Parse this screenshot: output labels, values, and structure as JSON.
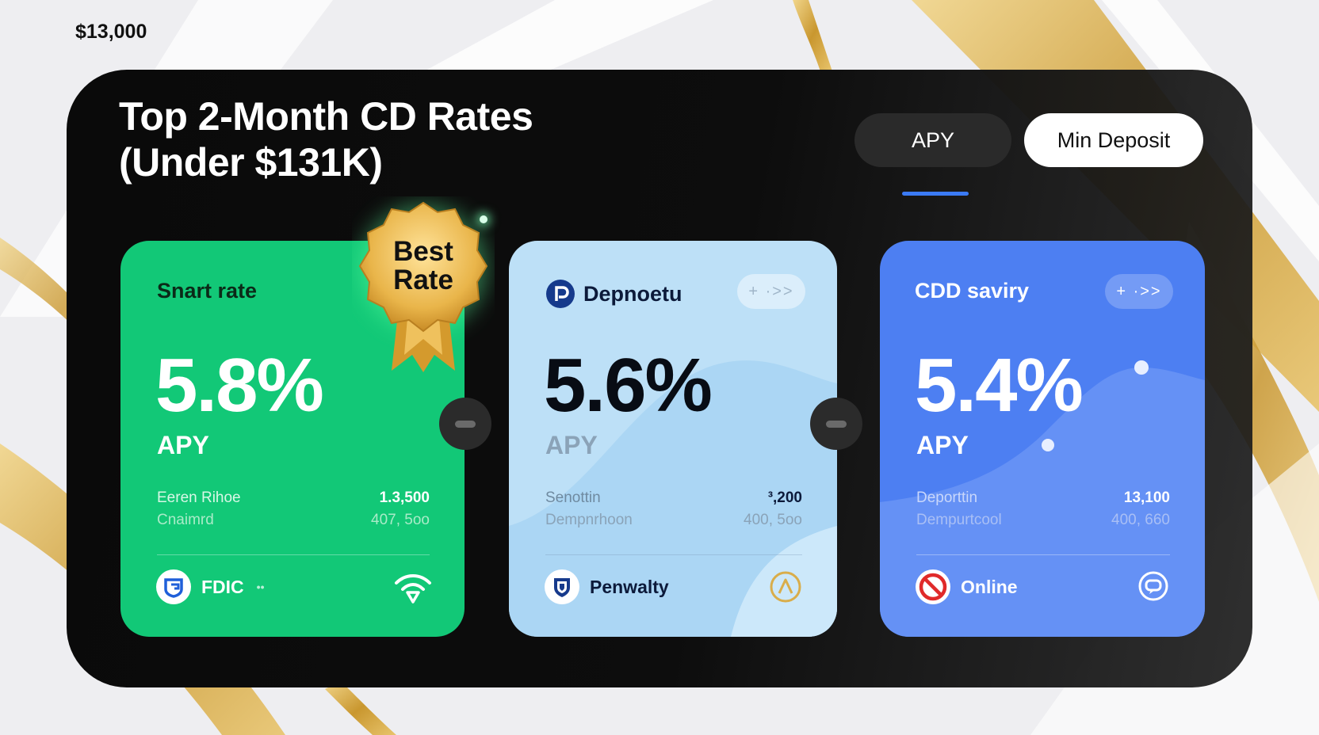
{
  "top_amount": "$13,000",
  "title": {
    "line1": "Top 2-Month CD Rates",
    "line2": "(Under $131K)"
  },
  "toggles": {
    "apy_label": "APY",
    "min_deposit_label": "Min Deposit",
    "active": "APY"
  },
  "badge": {
    "line1": "Best",
    "line2": "Rate"
  },
  "cards": [
    {
      "name": "Snart rate",
      "rate": "5.8%",
      "apy_label": "APY",
      "row1_label": "Eeren Rihoe",
      "row1_value": "1.3,500",
      "row2_label": "Cnaimrd",
      "row2_value": "407, 5oo",
      "footer_label": "FDIC",
      "footer_icon": "fdic-shield-icon",
      "corner_icon": "signal-icon",
      "color": "#12c877"
    },
    {
      "name": "Depnoetu",
      "name_icon": "p-logo-icon",
      "pill": "+ ·>>",
      "rate": "5.6%",
      "apy_label": "APY",
      "row1_label": "Senottin",
      "row1_value": "³,200",
      "row2_label": "Dempnrhoon",
      "row2_value": "400, 5oo",
      "footer_label": "Penwalty",
      "footer_icon": "shield-icon",
      "corner_icon": "alert-triangle-icon",
      "color": "#bde0f7"
    },
    {
      "name": "CDD saviry",
      "pill": "+ ·>>",
      "rate": "5.4%",
      "apy_label": "APY",
      "row1_label": "Deporttin",
      "row1_value": "13,100",
      "row2_label": "Dempurtcool",
      "row2_value": "400, 660",
      "footer_label": "Online",
      "footer_icon": "prohibited-icon",
      "corner_icon": "chat-icon",
      "color": "#4d7ff2"
    }
  ],
  "colors": {
    "panel": "#0d0d0d",
    "accent_blue": "#3b7bf6",
    "gold": "#d9ad4a"
  }
}
